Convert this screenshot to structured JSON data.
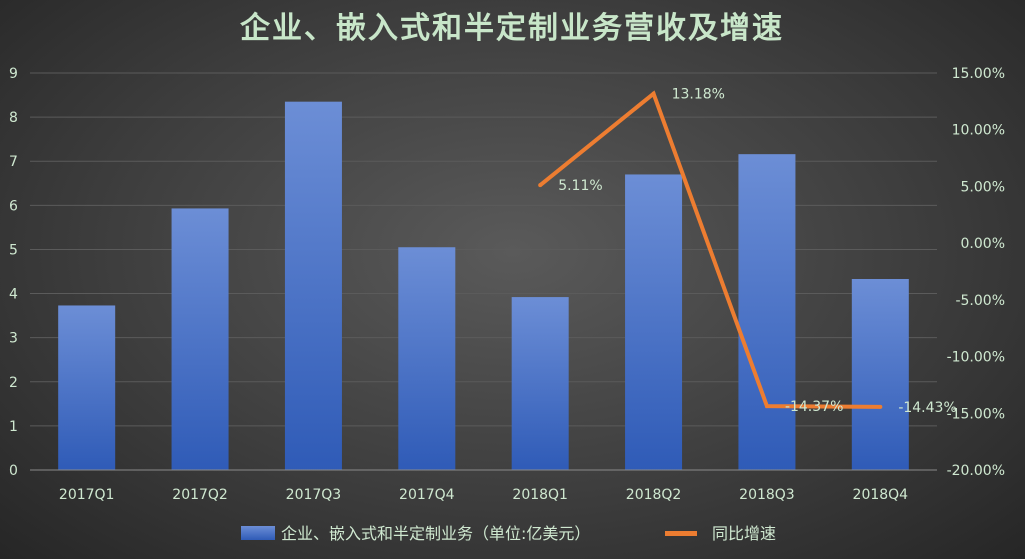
{
  "colors": {
    "bar": "#4472C4",
    "bar_light": "#6c8ed6",
    "bar_dark": "#2f5bb7",
    "line": "#ED7D31",
    "title": "#c8e6c9",
    "text": "#cfe8d0",
    "grid": "#5b5b5b"
  },
  "chart_data": {
    "type": "bar",
    "title": "企业、嵌入式和半定制业务营收及增速",
    "categories": [
      "2017Q1",
      "2017Q2",
      "2017Q3",
      "2017Q4",
      "2018Q1",
      "2018Q2",
      "2018Q3",
      "2018Q4"
    ],
    "series": [
      {
        "name": "企业、嵌入式和半定制业务（单位:亿美元）",
        "type": "bar",
        "axis": "left",
        "values": [
          3.73,
          5.93,
          8.35,
          5.05,
          3.92,
          6.7,
          7.16,
          4.33
        ]
      },
      {
        "name": "同比增速",
        "type": "line",
        "axis": "right",
        "values": [
          null,
          null,
          null,
          null,
          5.11,
          13.18,
          -14.37,
          -14.43
        ],
        "labels": [
          null,
          null,
          null,
          null,
          "5.11%",
          "13.18%",
          "-14.37%",
          "-14.43%"
        ]
      }
    ],
    "y_left": {
      "ylim": [
        0,
        9
      ],
      "ticks": [
        "0",
        "1",
        "2",
        "3",
        "4",
        "5",
        "6",
        "7",
        "8",
        "9"
      ]
    },
    "y_right": {
      "ylim": [
        -20,
        15
      ],
      "ticks": [
        "-20.00%",
        "-15.00%",
        "-10.00%",
        "-5.00%",
        "0.00%",
        "5.00%",
        "10.00%",
        "15.00%"
      ]
    },
    "grid": true,
    "legend": "bottom"
  }
}
